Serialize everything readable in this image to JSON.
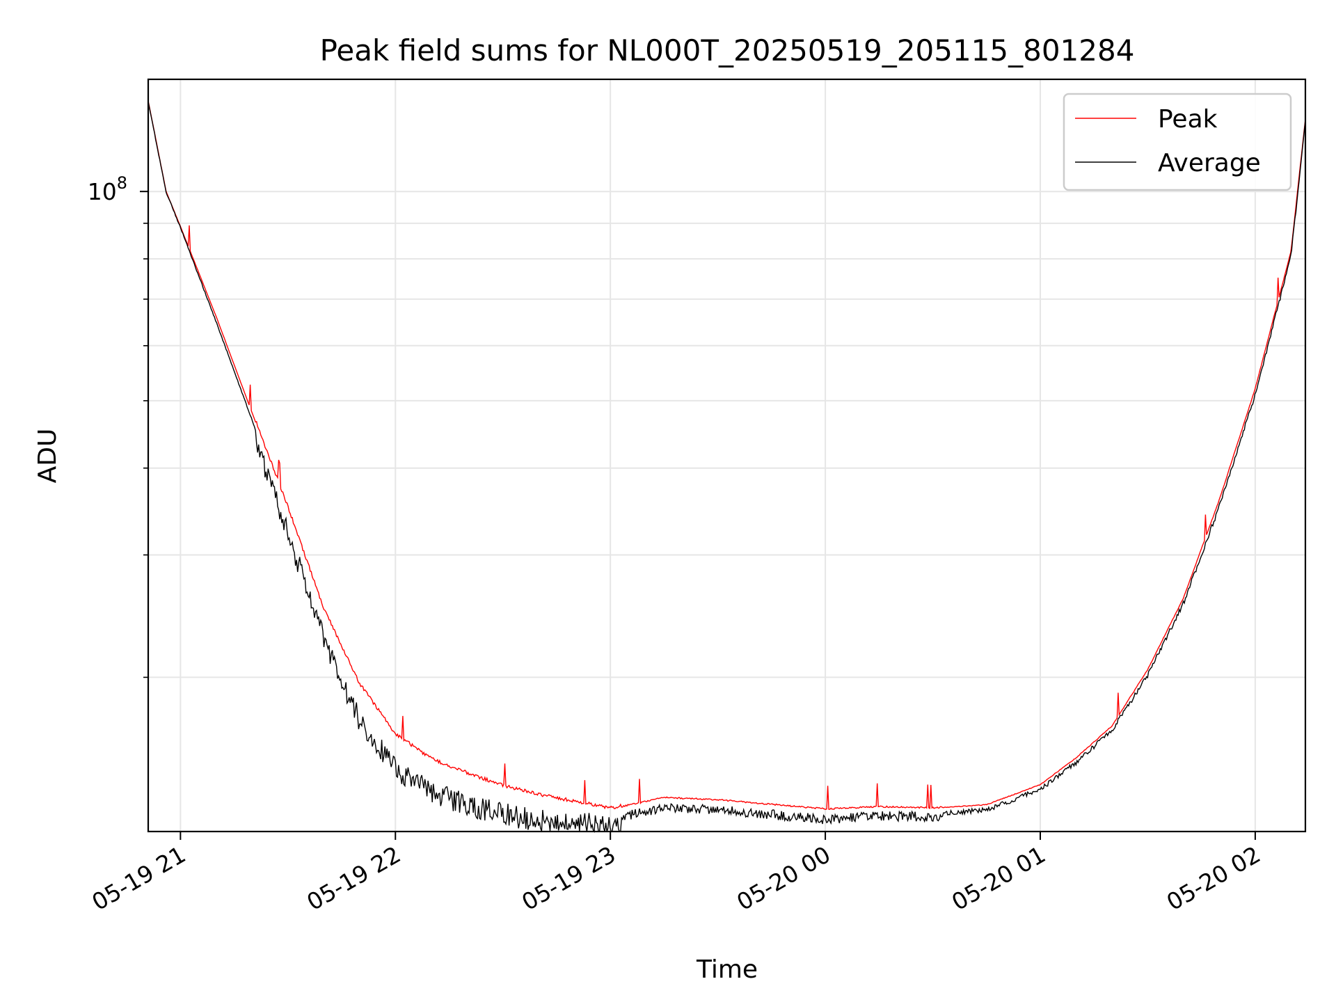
{
  "chart_data": {
    "type": "line",
    "title": "Peak field sums for NL000T_20250519_205115_801284",
    "xlabel": "Time",
    "ylabel": "ADU",
    "yscale": "log",
    "ylim": [
      12000000,
      145000000
    ],
    "xlim": [
      "2025-05-19T20:51",
      "2025-05-20T02:14"
    ],
    "x_ticks": [
      "05-19 21",
      "05-19 22",
      "05-19 23",
      "05-20 00",
      "05-20 01",
      "05-20 02"
    ],
    "x_tick_times": [
      "2025-05-19T21:00",
      "2025-05-19T22:00",
      "2025-05-19T23:00",
      "2025-05-20T00:00",
      "2025-05-20T01:00",
      "2025-05-20T02:00"
    ],
    "y_ticks": [
      "10^8"
    ],
    "grid": true,
    "legend": "top-right",
    "series": [
      {
        "name": "Peak",
        "color": "#ff0000",
        "x": [
          "2025-05-19T20:51",
          "2025-05-19T20:56",
          "2025-05-19T21:00",
          "2025-05-19T21:10",
          "2025-05-19T21:20",
          "2025-05-19T21:30",
          "2025-05-19T21:40",
          "2025-05-19T21:50",
          "2025-05-19T22:00",
          "2025-05-19T22:10",
          "2025-05-19T22:20",
          "2025-05-19T22:30",
          "2025-05-19T22:40",
          "2025-05-19T22:50",
          "2025-05-19T23:00",
          "2025-05-19T23:15",
          "2025-05-19T23:30",
          "2025-05-19T23:45",
          "2025-05-20T00:00",
          "2025-05-20T00:15",
          "2025-05-20T00:30",
          "2025-05-20T00:45",
          "2025-05-20T01:00",
          "2025-05-20T01:10",
          "2025-05-20T01:20",
          "2025-05-20T01:30",
          "2025-05-20T01:40",
          "2025-05-20T01:50",
          "2025-05-20T02:00",
          "2025-05-20T02:10",
          "2025-05-20T02:14"
        ],
        "y": [
          135000000,
          100000000,
          89000000,
          66000000,
          48000000,
          35000000,
          25000000,
          19500000,
          16500000,
          15200000,
          14500000,
          13900000,
          13500000,
          13200000,
          12900000,
          13400000,
          13300000,
          13100000,
          12900000,
          13000000,
          12950000,
          13100000,
          14000000,
          15300000,
          17000000,
          20500000,
          26000000,
          36000000,
          52000000,
          82000000,
          127000000
        ]
      },
      {
        "name": "Average",
        "color": "#000000",
        "x": [
          "2025-05-19T20:51",
          "2025-05-19T20:56",
          "2025-05-19T21:00",
          "2025-05-19T21:10",
          "2025-05-19T21:20",
          "2025-05-19T21:30",
          "2025-05-19T21:40",
          "2025-05-19T21:50",
          "2025-05-19T22:00",
          "2025-05-19T22:10",
          "2025-05-19T22:20",
          "2025-05-19T22:30",
          "2025-05-19T22:40",
          "2025-05-19T22:50",
          "2025-05-19T23:00",
          "2025-05-19T23:15",
          "2025-05-19T23:30",
          "2025-05-19T23:45",
          "2025-05-20T00:00",
          "2025-05-20T00:15",
          "2025-05-20T00:30",
          "2025-05-20T00:45",
          "2025-05-20T01:00",
          "2025-05-20T01:10",
          "2025-05-20T01:20",
          "2025-05-20T01:30",
          "2025-05-20T01:40",
          "2025-05-20T01:50",
          "2025-05-20T02:00",
          "2025-05-20T02:10",
          "2025-05-20T02:14"
        ],
        "y": [
          135000000,
          100000000,
          89000000,
          65000000,
          47000000,
          33500000,
          23500000,
          18000000,
          15300000,
          14200000,
          13600000,
          13200000,
          12900000,
          12800000,
          12700000,
          13200000,
          13100000,
          12900000,
          12700000,
          12850000,
          12800000,
          13000000,
          13900000,
          15200000,
          16900000,
          20300000,
          25800000,
          35500000,
          51500000,
          81500000,
          127000000
        ]
      }
    ]
  }
}
